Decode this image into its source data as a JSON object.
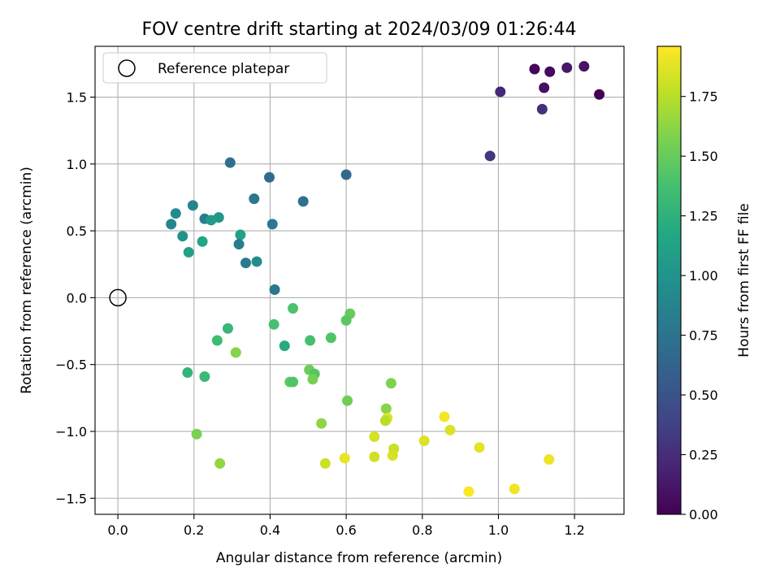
{
  "chart_data": {
    "type": "scatter",
    "title": "FOV centre drift starting at 2024/03/09 01:26:44",
    "xlabel": "Angular distance from reference (arcmin)",
    "ylabel": "Rotation from reference (arcmin)",
    "xlim": [
      -0.06,
      1.33
    ],
    "ylim": [
      -1.62,
      1.88
    ],
    "xticks": [
      0.0,
      0.2,
      0.4,
      0.6,
      0.8,
      1.0,
      1.2
    ],
    "xtick_labels": [
      "0.0",
      "0.2",
      "0.4",
      "0.6",
      "0.8",
      "1.0",
      "1.2"
    ],
    "yticks": [
      -1.5,
      -1.0,
      -0.5,
      0.0,
      0.5,
      1.0,
      1.5
    ],
    "ytick_labels": [
      "−1.5",
      "−1.0",
      "−0.5",
      "0.0",
      "0.5",
      "1.0",
      "1.5"
    ],
    "grid": true,
    "colormap": "viridis",
    "colorbar": {
      "label": "Hours from first FF file",
      "range": [
        0.0,
        1.96
      ],
      "ticks": [
        0.0,
        0.25,
        0.5,
        0.75,
        1.0,
        1.25,
        1.5,
        1.75
      ],
      "tick_labels": [
        "0.00",
        "0.25",
        "0.50",
        "0.75",
        "1.00",
        "1.25",
        "1.50",
        "1.75"
      ]
    },
    "legend": {
      "placement": "upper-left",
      "label": "Reference platepar"
    },
    "reference_point": {
      "x": 0.0,
      "y": 0.0
    },
    "points": [
      {
        "x": 1.265,
        "y": 1.52,
        "hours": 0.0
      },
      {
        "x": 1.095,
        "y": 1.71,
        "hours": 0.03
      },
      {
        "x": 1.135,
        "y": 1.69,
        "hours": 0.05
      },
      {
        "x": 1.225,
        "y": 1.73,
        "hours": 0.1
      },
      {
        "x": 1.12,
        "y": 1.57,
        "hours": 0.08
      },
      {
        "x": 1.18,
        "y": 1.72,
        "hours": 0.13
      },
      {
        "x": 1.005,
        "y": 1.54,
        "hours": 0.22
      },
      {
        "x": 1.115,
        "y": 1.41,
        "hours": 0.27
      },
      {
        "x": 0.978,
        "y": 1.06,
        "hours": 0.3
      },
      {
        "x": 0.295,
        "y": 1.01,
        "hours": 0.72
      },
      {
        "x": 0.6,
        "y": 0.92,
        "hours": 0.68
      },
      {
        "x": 0.398,
        "y": 0.9,
        "hours": 0.7
      },
      {
        "x": 0.487,
        "y": 0.72,
        "hours": 0.73
      },
      {
        "x": 0.358,
        "y": 0.74,
        "hours": 0.76
      },
      {
        "x": 0.197,
        "y": 0.69,
        "hours": 0.88
      },
      {
        "x": 0.152,
        "y": 0.63,
        "hours": 0.93
      },
      {
        "x": 0.228,
        "y": 0.59,
        "hours": 0.84
      },
      {
        "x": 0.265,
        "y": 0.6,
        "hours": 1.02
      },
      {
        "x": 0.245,
        "y": 0.58,
        "hours": 1.07
      },
      {
        "x": 0.14,
        "y": 0.55,
        "hours": 0.9
      },
      {
        "x": 0.406,
        "y": 0.55,
        "hours": 0.8
      },
      {
        "x": 0.17,
        "y": 0.46,
        "hours": 1.0
      },
      {
        "x": 0.322,
        "y": 0.47,
        "hours": 1.12
      },
      {
        "x": 0.222,
        "y": 0.42,
        "hours": 1.15
      },
      {
        "x": 0.318,
        "y": 0.4,
        "hours": 0.82
      },
      {
        "x": 0.186,
        "y": 0.34,
        "hours": 1.1
      },
      {
        "x": 0.336,
        "y": 0.26,
        "hours": 0.8
      },
      {
        "x": 0.365,
        "y": 0.27,
        "hours": 0.96
      },
      {
        "x": 0.412,
        "y": 0.06,
        "hours": 0.78
      },
      {
        "x": 0.46,
        "y": -0.08,
        "hours": 1.4
      },
      {
        "x": 0.61,
        "y": -0.12,
        "hours": 1.5
      },
      {
        "x": 0.6,
        "y": -0.17,
        "hours": 1.46
      },
      {
        "x": 0.41,
        "y": -0.2,
        "hours": 1.38
      },
      {
        "x": 0.289,
        "y": -0.23,
        "hours": 1.3
      },
      {
        "x": 0.261,
        "y": -0.32,
        "hours": 1.34
      },
      {
        "x": 0.505,
        "y": -0.32,
        "hours": 1.37
      },
      {
        "x": 0.56,
        "y": -0.3,
        "hours": 1.42
      },
      {
        "x": 0.438,
        "y": -0.36,
        "hours": 1.2
      },
      {
        "x": 0.31,
        "y": -0.41,
        "hours": 1.6
      },
      {
        "x": 0.183,
        "y": -0.56,
        "hours": 1.28
      },
      {
        "x": 0.228,
        "y": -0.59,
        "hours": 1.32
      },
      {
        "x": 0.503,
        "y": -0.54,
        "hours": 1.52
      },
      {
        "x": 0.517,
        "y": -0.57,
        "hours": 1.44
      },
      {
        "x": 0.452,
        "y": -0.63,
        "hours": 1.47
      },
      {
        "x": 0.46,
        "y": -0.63,
        "hours": 1.42
      },
      {
        "x": 0.512,
        "y": -0.61,
        "hours": 1.55
      },
      {
        "x": 0.718,
        "y": -0.64,
        "hours": 1.58
      },
      {
        "x": 0.603,
        "y": -0.77,
        "hours": 1.53
      },
      {
        "x": 0.705,
        "y": -0.83,
        "hours": 1.61
      },
      {
        "x": 0.708,
        "y": -0.9,
        "hours": 1.87
      },
      {
        "x": 0.703,
        "y": -0.92,
        "hours": 1.75
      },
      {
        "x": 0.535,
        "y": -0.94,
        "hours": 1.63
      },
      {
        "x": 0.858,
        "y": -0.89,
        "hours": 1.93
      },
      {
        "x": 0.873,
        "y": -0.99,
        "hours": 1.85
      },
      {
        "x": 0.207,
        "y": -1.02,
        "hours": 1.57
      },
      {
        "x": 0.674,
        "y": -1.04,
        "hours": 1.83
      },
      {
        "x": 0.805,
        "y": -1.07,
        "hours": 1.86
      },
      {
        "x": 0.725,
        "y": -1.13,
        "hours": 1.8
      },
      {
        "x": 0.95,
        "y": -1.12,
        "hours": 1.88
      },
      {
        "x": 0.674,
        "y": -1.19,
        "hours": 1.82
      },
      {
        "x": 0.722,
        "y": -1.18,
        "hours": 1.84
      },
      {
        "x": 0.596,
        "y": -1.2,
        "hours": 1.9
      },
      {
        "x": 1.133,
        "y": -1.21,
        "hours": 1.91
      },
      {
        "x": 0.545,
        "y": -1.24,
        "hours": 1.81
      },
      {
        "x": 0.268,
        "y": -1.24,
        "hours": 1.64
      },
      {
        "x": 1.042,
        "y": -1.43,
        "hours": 1.92
      },
      {
        "x": 0.922,
        "y": -1.45,
        "hours": 1.95
      }
    ]
  }
}
